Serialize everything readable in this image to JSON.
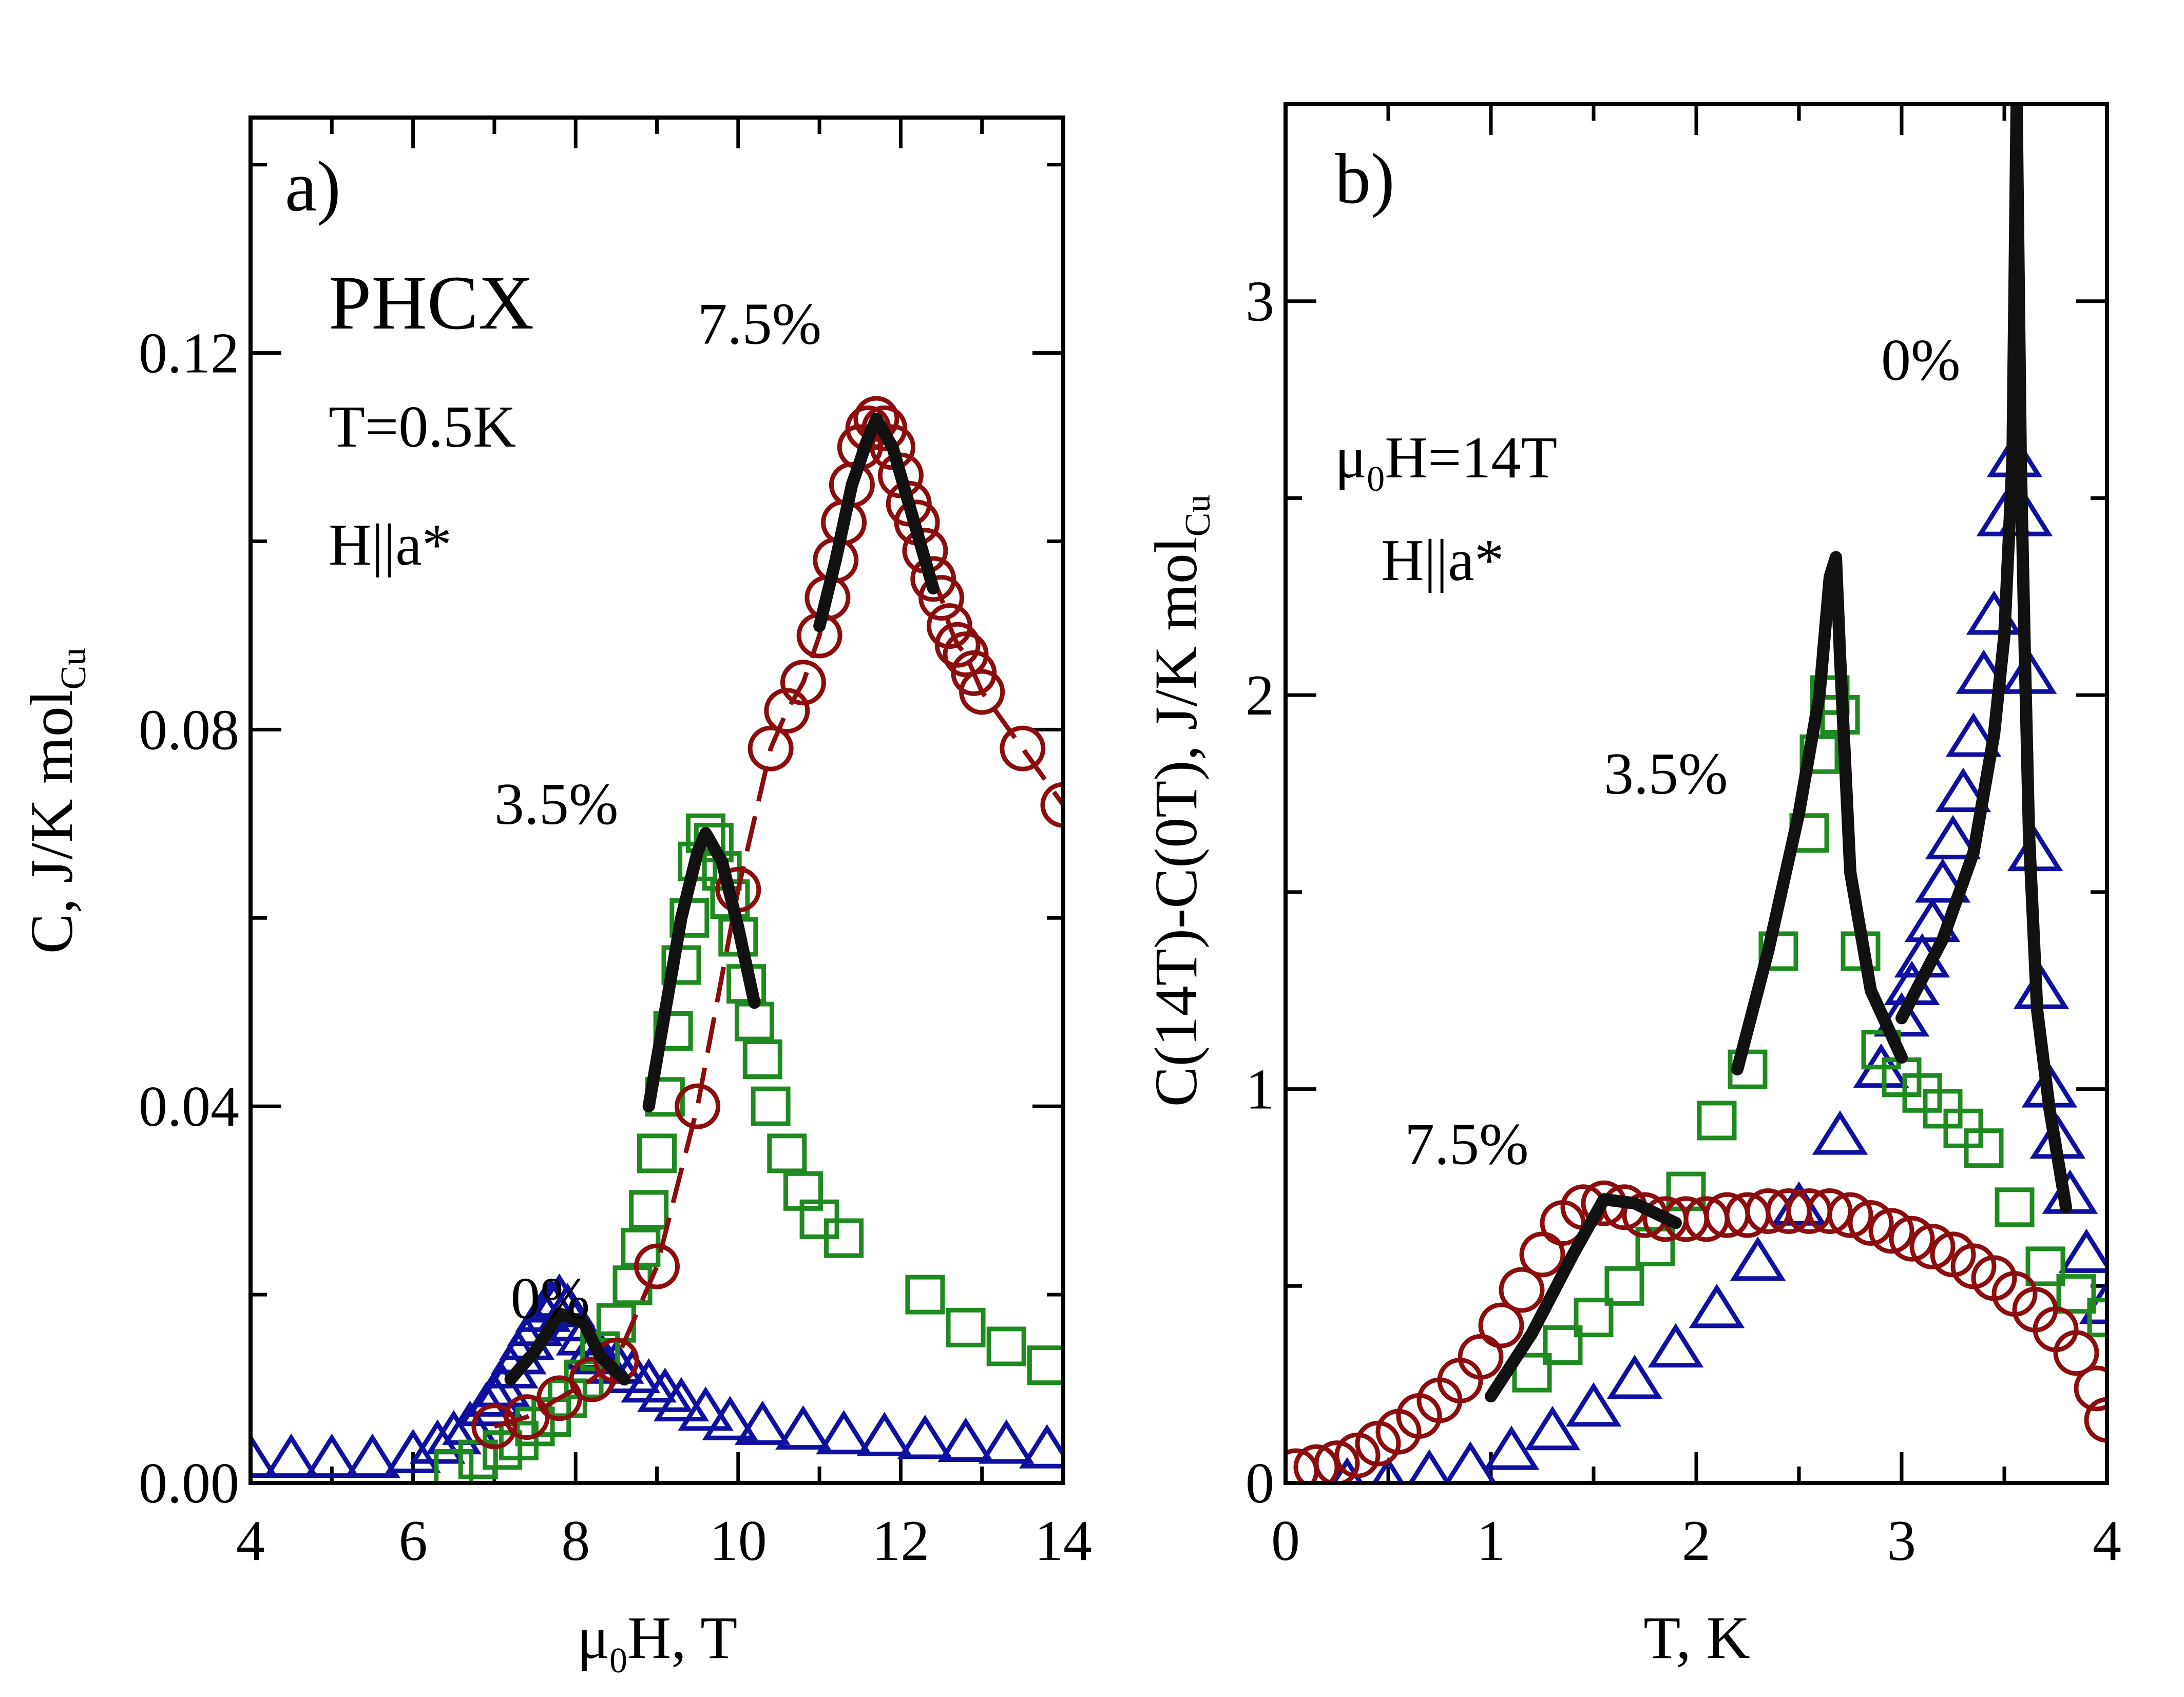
{
  "figure": {
    "colors": {
      "series_0": "#1010a0",
      "series_3_5": "#1f8a1f",
      "series_7_5": "#8b0d0d",
      "fit": "#111111"
    }
  },
  "chart_data": [
    {
      "panel": "a",
      "type": "scatter",
      "panel_label": "a)",
      "annotations": {
        "sample": "PHCX",
        "temperature": "T=0.5K",
        "field_dir": "H||a*"
      },
      "xlabel_main": "μ",
      "xlabel_sub": "0",
      "xlabel_tail": "H, T",
      "ylabel_main": "C, J/K mol",
      "ylabel_sub": "Cu",
      "xlim": [
        4,
        14
      ],
      "ylim": [
        0,
        0.145
      ],
      "xticks": [
        4,
        6,
        8,
        10,
        12,
        14
      ],
      "xtick_labels": [
        "4",
        "6",
        "8",
        "10",
        "12",
        "14"
      ],
      "yticks": [
        0,
        0.04,
        0.08,
        0.12
      ],
      "ytick_labels": [
        "0.00",
        "0.04",
        "0.08",
        "0.12"
      ],
      "series": [
        {
          "name": "0%",
          "label": "0%",
          "marker": "triangle",
          "color": "#1010a0",
          "label_at": [
            7.2,
            0.0175
          ],
          "x": [
            4.0,
            4.5,
            5.0,
            5.5,
            6.0,
            6.3,
            6.5,
            6.7,
            6.9,
            7.0,
            7.1,
            7.2,
            7.3,
            7.4,
            7.5,
            7.6,
            7.7,
            7.8,
            7.9,
            8.0,
            8.1,
            8.2,
            8.3,
            8.5,
            8.7,
            8.9,
            9.1,
            9.3,
            9.6,
            9.9,
            10.3,
            10.8,
            11.3,
            11.8,
            12.3,
            12.8,
            13.3,
            13.8
          ],
          "y": [
            0.0025,
            0.0025,
            0.0025,
            0.0025,
            0.003,
            0.004,
            0.005,
            0.006,
            0.008,
            0.009,
            0.01,
            0.012,
            0.0135,
            0.015,
            0.0165,
            0.018,
            0.019,
            0.0195,
            0.0185,
            0.017,
            0.0155,
            0.014,
            0.0135,
            0.0125,
            0.0115,
            0.0105,
            0.0095,
            0.0085,
            0.0075,
            0.0065,
            0.006,
            0.0055,
            0.005,
            0.0048,
            0.0045,
            0.0042,
            0.004,
            0.0035
          ]
        },
        {
          "name": "3.5%",
          "label": "3.5%",
          "marker": "square",
          "color": "#1f8a1f",
          "label_at": [
            7.0,
            0.07
          ],
          "x": [
            6.5,
            6.8,
            7.1,
            7.3,
            7.5,
            7.7,
            7.9,
            8.1,
            8.3,
            8.5,
            8.7,
            8.8,
            8.9,
            9.0,
            9.1,
            9.2,
            9.3,
            9.4,
            9.5,
            9.6,
            9.7,
            9.8,
            9.9,
            10.0,
            10.1,
            10.2,
            10.3,
            10.4,
            10.6,
            10.8,
            11.0,
            11.3,
            12.3,
            12.8,
            13.3,
            13.8
          ],
          "y": [
            0.0015,
            0.0025,
            0.0035,
            0.0045,
            0.006,
            0.007,
            0.009,
            0.011,
            0.014,
            0.017,
            0.021,
            0.025,
            0.029,
            0.035,
            0.041,
            0.048,
            0.055,
            0.06,
            0.066,
            0.069,
            0.068,
            0.065,
            0.062,
            0.058,
            0.053,
            0.049,
            0.045,
            0.04,
            0.035,
            0.031,
            0.028,
            0.026,
            0.02,
            0.0165,
            0.0145,
            0.0125
          ]
        },
        {
          "name": "7.5%",
          "label": "7.5%",
          "marker": "circle",
          "color": "#8b0d0d",
          "label_at": [
            9.5,
            0.121
          ],
          "x": [
            7.0,
            7.4,
            7.8,
            8.2,
            8.5,
            9.0,
            9.5,
            10.0,
            10.4,
            10.6,
            10.8,
            11.0,
            11.1,
            11.2,
            11.3,
            11.4,
            11.5,
            11.6,
            11.7,
            11.8,
            11.9,
            12.0,
            12.1,
            12.2,
            12.3,
            12.4,
            12.5,
            12.6,
            12.7,
            12.8,
            12.9,
            13.0,
            13.5,
            14.0
          ],
          "y": [
            0.006,
            0.007,
            0.009,
            0.011,
            0.013,
            0.023,
            0.04,
            0.063,
            0.078,
            0.082,
            0.085,
            0.09,
            0.094,
            0.098,
            0.102,
            0.106,
            0.11,
            0.112,
            0.113,
            0.112,
            0.11,
            0.107,
            0.104,
            0.102,
            0.099,
            0.096,
            0.094,
            0.091,
            0.089,
            0.088,
            0.086,
            0.084,
            0.078,
            0.072
          ]
        }
      ],
      "fits": [
        {
          "name": "fit-0",
          "x": [
            7.2,
            7.5,
            7.8,
            8.1,
            8.3,
            8.6
          ],
          "y": [
            0.011,
            0.014,
            0.018,
            0.017,
            0.0135,
            0.011
          ]
        },
        {
          "name": "fit-3.5",
          "x": [
            8.9,
            9.1,
            9.3,
            9.5,
            9.6,
            9.8,
            10.0,
            10.2
          ],
          "y": [
            0.04,
            0.05,
            0.06,
            0.067,
            0.069,
            0.066,
            0.059,
            0.051
          ]
        },
        {
          "name": "fit-7.5",
          "x": [
            11.0,
            11.2,
            11.4,
            11.6,
            11.7,
            11.9,
            12.1,
            12.4
          ],
          "y": [
            0.091,
            0.098,
            0.106,
            0.111,
            0.113,
            0.11,
            0.104,
            0.095
          ]
        }
      ]
    },
    {
      "panel": "b",
      "type": "scatter",
      "panel_label": "b)",
      "annotations": {
        "field_main": "μ",
        "field_sub": "0",
        "field_tail": "H=14T",
        "field_dir": "H||a*"
      },
      "xlabel_main": "T, K",
      "ylabel_main": "C(14T)-C(0T), J/K mol",
      "ylabel_sub": "Cu",
      "xlim": [
        0,
        4
      ],
      "ylim": [
        0,
        3.5
      ],
      "xticks": [
        0,
        1,
        2,
        3,
        4
      ],
      "xtick_labels": [
        "0",
        "1",
        "2",
        "3",
        "4"
      ],
      "yticks": [
        0,
        1,
        2,
        3
      ],
      "ytick_labels": [
        "0",
        "1",
        "2",
        "3"
      ],
      "series": [
        {
          "name": "0%",
          "label": "0%",
          "marker": "triangle",
          "color": "#1010a0",
          "label_at": [
            2.9,
            2.8
          ],
          "x": [
            0.3,
            0.5,
            0.7,
            0.9,
            1.1,
            1.3,
            1.5,
            1.7,
            1.9,
            2.1,
            2.3,
            2.5,
            2.7,
            2.9,
            3.0,
            3.05,
            3.1,
            3.15,
            3.2,
            3.25,
            3.3,
            3.35,
            3.4,
            3.45,
            3.5,
            3.55,
            3.6,
            3.62,
            3.65,
            3.68,
            3.72,
            3.76,
            3.82,
            3.9,
            4.0
          ],
          "y": [
            0.0,
            0.0,
            0.02,
            0.04,
            0.08,
            0.13,
            0.19,
            0.26,
            0.34,
            0.44,
            0.56,
            0.7,
            0.88,
            1.05,
            1.18,
            1.26,
            1.33,
            1.42,
            1.52,
            1.63,
            1.75,
            1.89,
            2.05,
            2.2,
            2.45,
            2.6,
            2.45,
            2.05,
            1.6,
            1.25,
            1.0,
            0.87,
            0.73,
            0.58,
            0.45
          ]
        },
        {
          "name": "3.5%",
          "label": "3.5%",
          "marker": "square",
          "color": "#1f8a1f",
          "label_at": [
            1.55,
            1.75
          ],
          "x": [
            1.2,
            1.35,
            1.5,
            1.65,
            1.8,
            1.95,
            2.1,
            2.25,
            2.4,
            2.55,
            2.6,
            2.65,
            2.7,
            2.8,
            2.9,
            3.0,
            3.1,
            3.2,
            3.3,
            3.4,
            3.55,
            3.7,
            3.85,
            4.0
          ],
          "y": [
            0.28,
            0.35,
            0.42,
            0.5,
            0.6,
            0.74,
            0.92,
            1.05,
            1.35,
            1.65,
            1.85,
            2.0,
            1.95,
            1.35,
            1.1,
            1.03,
            0.99,
            0.95,
            0.9,
            0.85,
            0.7,
            0.55,
            0.48,
            0.42
          ]
        },
        {
          "name": "7.5%",
          "label": "7.5%",
          "marker": "circle",
          "color": "#8b0d0d",
          "label_at": [
            0.58,
            0.81
          ],
          "x": [
            0.05,
            0.15,
            0.25,
            0.35,
            0.45,
            0.55,
            0.65,
            0.75,
            0.85,
            0.95,
            1.05,
            1.15,
            1.25,
            1.35,
            1.45,
            1.55,
            1.65,
            1.75,
            1.85,
            1.95,
            2.05,
            2.15,
            2.25,
            2.35,
            2.45,
            2.55,
            2.65,
            2.75,
            2.85,
            2.95,
            3.05,
            3.15,
            3.25,
            3.35,
            3.45,
            3.55,
            3.65,
            3.75,
            3.85,
            3.95,
            4.0
          ],
          "y": [
            0.03,
            0.04,
            0.05,
            0.07,
            0.1,
            0.13,
            0.17,
            0.21,
            0.26,
            0.32,
            0.4,
            0.49,
            0.58,
            0.66,
            0.7,
            0.71,
            0.7,
            0.68,
            0.67,
            0.67,
            0.67,
            0.68,
            0.68,
            0.69,
            0.69,
            0.69,
            0.69,
            0.68,
            0.66,
            0.64,
            0.62,
            0.6,
            0.58,
            0.55,
            0.52,
            0.48,
            0.44,
            0.39,
            0.33,
            0.24,
            0.16
          ]
        }
      ],
      "fits": [
        {
          "name": "fit-0",
          "x": [
            3.0,
            3.2,
            3.35,
            3.45,
            3.5,
            3.54,
            3.56,
            3.58,
            3.6,
            3.62,
            3.66,
            3.72,
            3.8
          ],
          "y": [
            1.18,
            1.38,
            1.6,
            1.9,
            2.15,
            2.6,
            3.5,
            2.6,
            2.1,
            1.65,
            1.2,
            0.95,
            0.7
          ]
        },
        {
          "name": "fit-3.5",
          "x": [
            2.2,
            2.35,
            2.5,
            2.6,
            2.65,
            2.68,
            2.7,
            2.75,
            2.85,
            3.0
          ],
          "y": [
            1.05,
            1.35,
            1.7,
            2.0,
            2.3,
            2.35,
            2.1,
            1.55,
            1.25,
            1.08
          ]
        },
        {
          "name": "fit-7.5",
          "x": [
            1.0,
            1.2,
            1.4,
            1.55,
            1.7,
            1.9
          ],
          "y": [
            0.22,
            0.38,
            0.58,
            0.72,
            0.71,
            0.66
          ]
        }
      ]
    }
  ]
}
